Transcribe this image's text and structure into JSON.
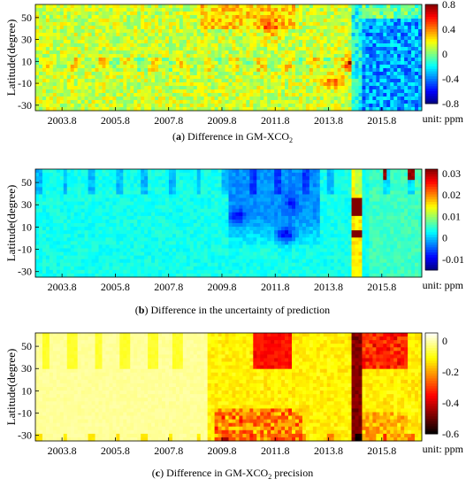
{
  "chart_data": [
    {
      "type": "heatmap",
      "panel_letter": "a",
      "caption_text": "Difference in GM-XCO",
      "caption_sub": "2",
      "caption_after": "",
      "ylabel": "Latitude(degree)",
      "unit_label": "unit: ppm",
      "x_ticks": [
        "2003.8",
        "2005.8",
        "2007.8",
        "2009.8",
        "2011.8",
        "2013.8",
        "2015.8"
      ],
      "y_ticks": [
        "50",
        "30",
        "10",
        "-10",
        "-30"
      ],
      "colorbar_ticks": [
        "0.8",
        "0.4",
        "0",
        "-0.4",
        "-0.8"
      ],
      "colorbar_range": [
        -0.8,
        0.8
      ],
      "colormap": "jet"
    },
    {
      "type": "heatmap",
      "panel_letter": "b",
      "caption_text": "Difference in the uncertainty of prediction",
      "caption_sub": "",
      "caption_after": "",
      "ylabel": "Latitude(degree)",
      "unit_label": "unit: ppm",
      "x_ticks": [
        "2003.8",
        "2005.8",
        "2007.8",
        "2009.8",
        "2011.8",
        "2013.8",
        "2015.8"
      ],
      "y_ticks": [
        "50",
        "30",
        "10",
        "-10",
        "-30"
      ],
      "colorbar_ticks": [
        "0.03",
        "0.02",
        "0.01",
        "0",
        "-0.01"
      ],
      "colorbar_range": [
        -0.015,
        0.032
      ],
      "colormap": "jet"
    },
    {
      "type": "heatmap",
      "panel_letter": "c",
      "caption_text": "Difference in GM-XCO",
      "caption_sub": "2",
      "caption_after": " precision",
      "ylabel": "Latitude(degree)",
      "unit_label": "unit: ppm",
      "x_ticks": [
        "2003.8",
        "2005.8",
        "2007.8",
        "2009.8",
        "2011.8",
        "2013.8",
        "2015.8"
      ],
      "y_ticks": [
        "50",
        "30",
        "10",
        "-10",
        "-30"
      ],
      "colorbar_ticks": [
        "0",
        "-0.2",
        "-0.4",
        "-0.6"
      ],
      "colorbar_range": [
        -0.6,
        0.05
      ],
      "colormap": "hot"
    }
  ]
}
